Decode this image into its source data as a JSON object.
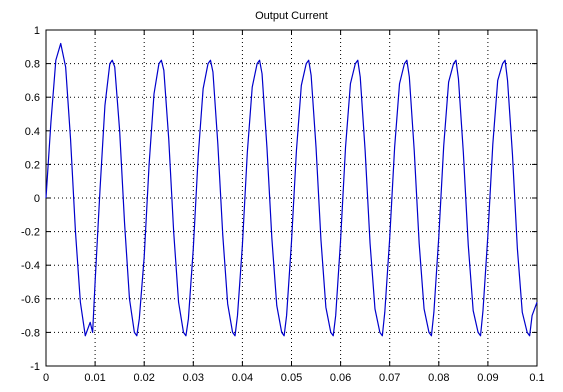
{
  "chart_data": {
    "type": "line",
    "title": "Output Current",
    "xlabel": "",
    "ylabel": "",
    "xlim": [
      0,
      0.1
    ],
    "ylim": [
      -1,
      1
    ],
    "xticks": [
      0,
      0.01,
      0.02,
      0.03,
      0.04,
      0.05,
      0.06,
      0.07,
      0.08,
      0.09,
      0.1
    ],
    "xtick_labels": [
      "0",
      "0.01",
      "0.02",
      "0.03",
      "0.04",
      "0.05",
      "0.06",
      "0.07",
      "0.08",
      "0.09",
      "0.1"
    ],
    "yticks": [
      -1,
      -0.8,
      -0.6,
      -0.4,
      -0.2,
      0,
      0.2,
      0.4,
      0.6,
      0.8,
      1
    ],
    "ytick_labels": [
      "-1",
      "-0.8",
      "-0.6",
      "-0.4",
      "-0.2",
      "0",
      "0.2",
      "0.4",
      "0.6",
      "0.8",
      "1"
    ],
    "grid": true,
    "series": [
      {
        "color": "#0000cc",
        "x": [
          0,
          0.001,
          0.002,
          0.003,
          0.004,
          0.005,
          0.006,
          0.007,
          0.008,
          0.009,
          0.0095,
          0.01,
          0.011,
          0.012,
          0.013,
          0.0135,
          0.014,
          0.015,
          0.016,
          0.017,
          0.018,
          0.0185,
          0.019,
          0.02,
          0.021,
          0.022,
          0.023,
          0.0235,
          0.024,
          0.025,
          0.026,
          0.027,
          0.028,
          0.0285,
          0.029,
          0.03,
          0.031,
          0.032,
          0.033,
          0.0335,
          0.034,
          0.035,
          0.036,
          0.037,
          0.038,
          0.0385,
          0.039,
          0.04,
          0.041,
          0.042,
          0.043,
          0.0435,
          0.044,
          0.045,
          0.046,
          0.047,
          0.048,
          0.0485,
          0.049,
          0.05,
          0.051,
          0.052,
          0.053,
          0.0535,
          0.054,
          0.055,
          0.056,
          0.057,
          0.058,
          0.0585,
          0.059,
          0.06,
          0.061,
          0.062,
          0.063,
          0.0635,
          0.064,
          0.065,
          0.066,
          0.067,
          0.068,
          0.0685,
          0.069,
          0.07,
          0.071,
          0.072,
          0.073,
          0.0735,
          0.074,
          0.075,
          0.076,
          0.077,
          0.078,
          0.0785,
          0.079,
          0.08,
          0.081,
          0.082,
          0.083,
          0.0835,
          0.084,
          0.085,
          0.086,
          0.087,
          0.088,
          0.0885,
          0.089,
          0.09,
          0.091,
          0.092,
          0.093,
          0.0935,
          0.094,
          0.095,
          0.096,
          0.097,
          0.098,
          0.0985,
          0.099,
          0.1
        ],
        "y": [
          0,
          0.45,
          0.82,
          0.92,
          0.78,
          0.35,
          -0.2,
          -0.62,
          -0.82,
          -0.74,
          -0.8,
          -0.5,
          0.05,
          0.55,
          0.8,
          0.82,
          0.78,
          0.4,
          -0.15,
          -0.6,
          -0.8,
          -0.82,
          -0.72,
          -0.35,
          0.2,
          0.62,
          0.8,
          0.82,
          0.76,
          0.35,
          -0.2,
          -0.62,
          -0.8,
          -0.82,
          -0.72,
          -0.3,
          0.25,
          0.65,
          0.8,
          0.82,
          0.75,
          0.32,
          -0.22,
          -0.63,
          -0.8,
          -0.82,
          -0.7,
          -0.28,
          0.27,
          0.66,
          0.8,
          0.82,
          0.74,
          0.3,
          -0.24,
          -0.64,
          -0.8,
          -0.82,
          -0.7,
          -0.26,
          0.28,
          0.67,
          0.8,
          0.82,
          0.73,
          0.3,
          -0.25,
          -0.65,
          -0.8,
          -0.82,
          -0.7,
          -0.25,
          0.3,
          0.68,
          0.8,
          0.82,
          0.72,
          0.28,
          -0.27,
          -0.66,
          -0.8,
          -0.82,
          -0.68,
          -0.24,
          0.3,
          0.68,
          0.8,
          0.82,
          0.72,
          0.28,
          -0.27,
          -0.66,
          -0.8,
          -0.82,
          -0.68,
          -0.23,
          0.31,
          0.69,
          0.8,
          0.82,
          0.71,
          0.27,
          -0.28,
          -0.67,
          -0.8,
          -0.82,
          -0.67,
          -0.22,
          0.32,
          0.7,
          0.8,
          0.82,
          0.7,
          0.26,
          -0.3,
          -0.68,
          -0.8,
          -0.82,
          -0.7,
          -0.62
        ]
      }
    ]
  }
}
